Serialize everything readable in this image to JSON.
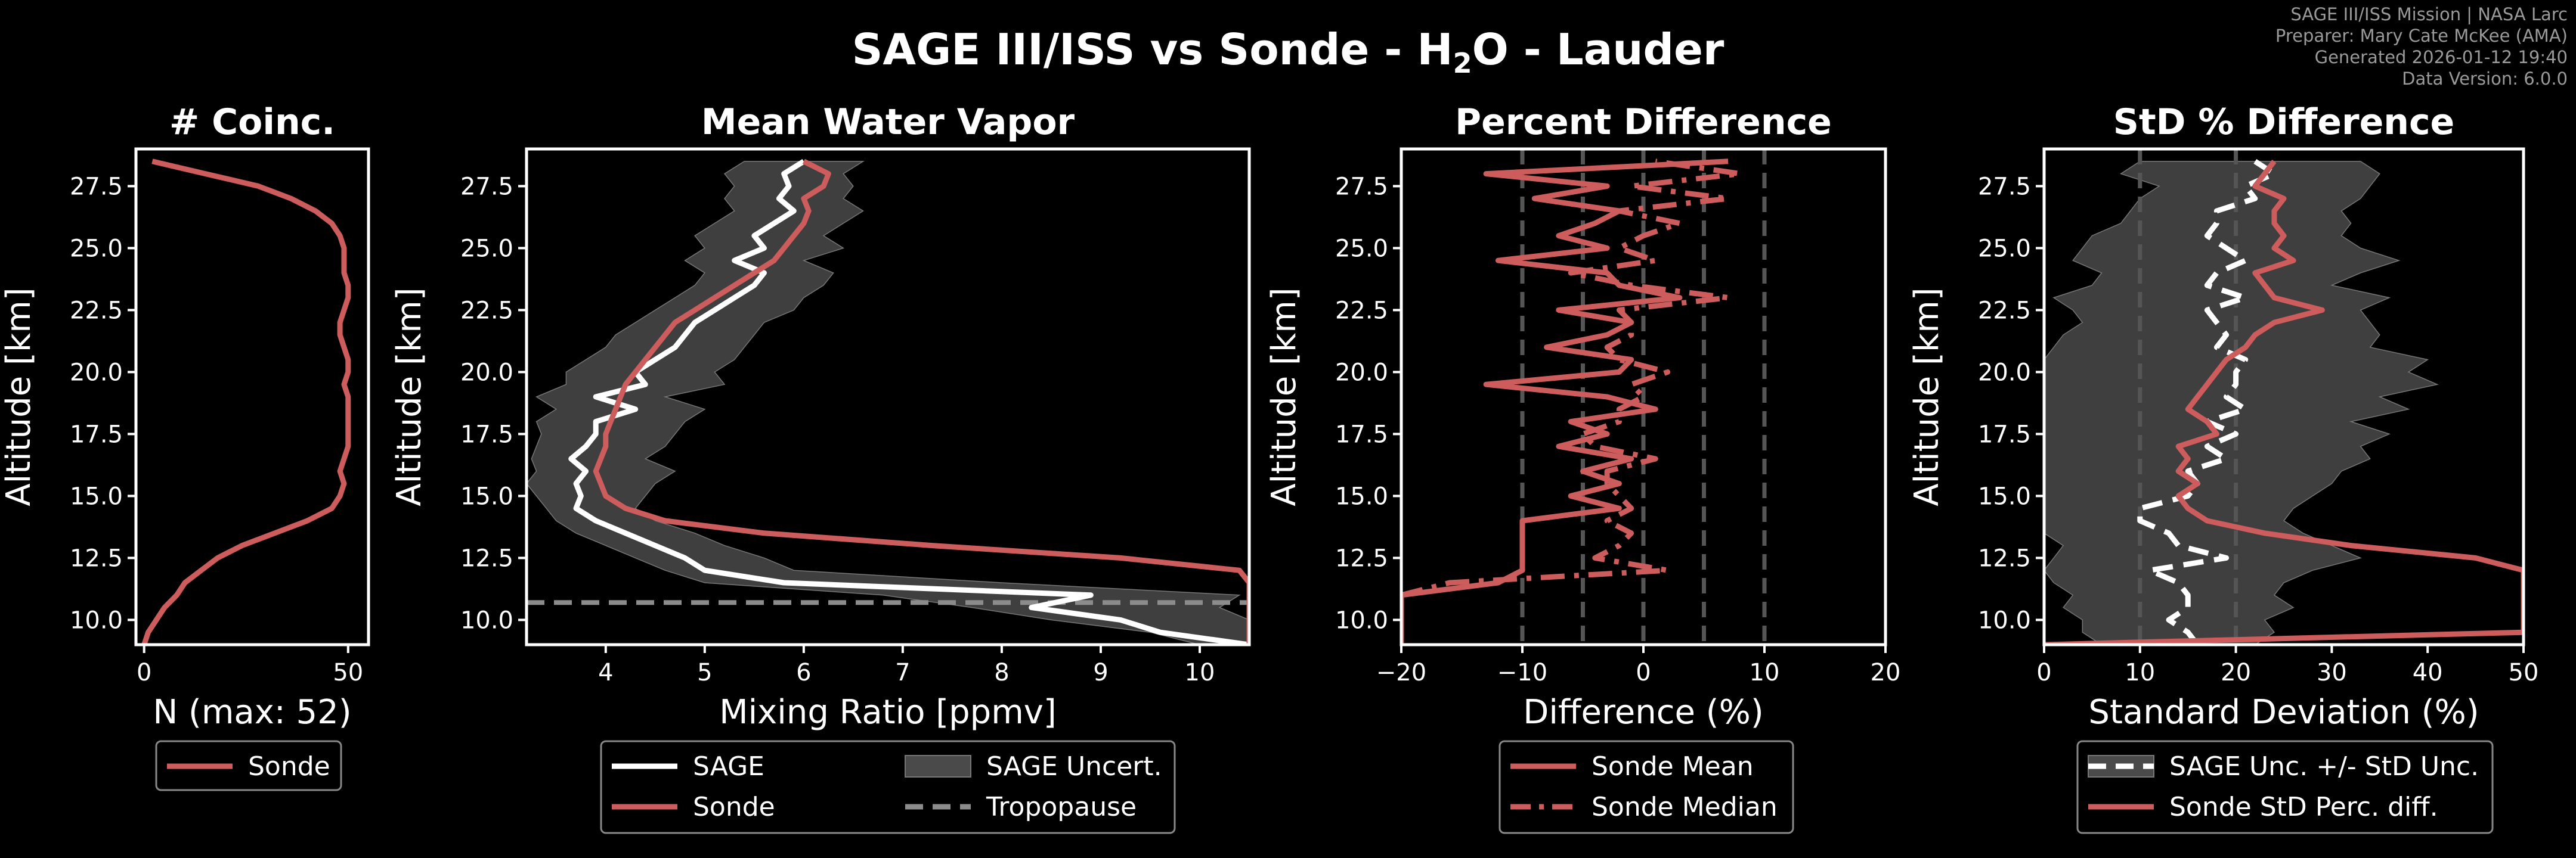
{
  "figure": {
    "title_prefix": "SAGE III/ISS vs Sonde - H",
    "title_sub": "2",
    "title_suffix": "O - Lauder",
    "meta_lines": [
      "SAGE III/ISS Mission | NASA Larc",
      "Preparer: Mary Cate McKee (AMA)",
      "Generated 2026-01-12 19:40",
      "Data Version: 6.0.0"
    ]
  },
  "colors": {
    "sonde": "#cd5c5c",
    "sage": "#ffffff",
    "band": "#4a4a4a",
    "bandEdge": "#777777",
    "tropo": "#8c8c8c",
    "ref": "#555555"
  },
  "altitude": [
    9.0,
    9.5,
    10.0,
    10.5,
    11.0,
    11.5,
    12.0,
    12.5,
    13.0,
    13.5,
    14.0,
    14.5,
    15.0,
    15.5,
    16.0,
    16.5,
    17.0,
    17.5,
    18.0,
    18.5,
    19.0,
    19.5,
    20.0,
    20.5,
    21.0,
    21.5,
    22.0,
    22.5,
    23.0,
    23.5,
    24.0,
    24.5,
    25.0,
    25.5,
    26.0,
    26.5,
    27.0,
    27.5,
    28.0,
    28.5
  ],
  "chart_data": [
    {
      "type": "line",
      "title": "# Coinc.",
      "xlabel": "N (max: 52)",
      "ylabel": "Altitude [km]",
      "xlim": [
        -2,
        55
      ],
      "ylim": [
        9,
        29
      ],
      "xticks": [
        0,
        50
      ],
      "xtick_labels": [
        "0",
        "50"
      ],
      "yticks": [
        10.0,
        12.5,
        15.0,
        17.5,
        20.0,
        22.5,
        25.0,
        27.5
      ],
      "ytick_labels": [
        "10.0",
        "12.5",
        "15.0",
        "17.5",
        "20.0",
        "22.5",
        "25.0",
        "27.5"
      ],
      "series": [
        {
          "name": "Sonde",
          "key": "sonde",
          "x": [
            0,
            1,
            3,
            5,
            8,
            10,
            14,
            18,
            24,
            32,
            40,
            46,
            48,
            49,
            48,
            49,
            50,
            50,
            50,
            50,
            50,
            49,
            50,
            50,
            49,
            48,
            48,
            49,
            50,
            50,
            49,
            49,
            49,
            48,
            46,
            42,
            36,
            28,
            15,
            2
          ]
        }
      ],
      "legend": [
        {
          "label": "Sonde",
          "key": "sonde",
          "style": "line"
        }
      ]
    },
    {
      "type": "line",
      "title": "Mean Water Vapor",
      "xlabel": "Mixing Ratio [ppmv]",
      "ylabel": "Altitude [km]",
      "xlim": [
        3.2,
        10.5
      ],
      "ylim": [
        9,
        29
      ],
      "xticks": [
        4,
        5,
        6,
        7,
        8,
        9,
        10
      ],
      "xtick_labels": [
        "4",
        "5",
        "6",
        "7",
        "8",
        "9",
        "10"
      ],
      "yticks": [
        10.0,
        12.5,
        15.0,
        17.5,
        20.0,
        22.5,
        25.0,
        27.5
      ],
      "ytick_labels": [
        "10.0",
        "12.5",
        "15.0",
        "17.5",
        "20.0",
        "22.5",
        "25.0",
        "27.5"
      ],
      "series": [
        {
          "name": "SAGE",
          "key": "sage",
          "x": [
            10.5,
            9.6,
            9.2,
            8.3,
            8.9,
            5.8,
            5.0,
            4.8,
            4.5,
            4.2,
            3.9,
            3.7,
            3.75,
            3.7,
            3.8,
            3.65,
            3.8,
            3.9,
            3.9,
            4.3,
            3.9,
            4.4,
            4.3,
            4.5,
            4.7,
            4.8,
            4.9,
            5.1,
            5.3,
            5.5,
            5.6,
            5.3,
            5.6,
            5.5,
            5.7,
            5.9,
            5.75,
            5.85,
            5.8,
            6.0
          ]
        },
        {
          "name": "Sonde",
          "key": "sonde",
          "x": [
            10.5,
            10.5,
            10.5,
            10.5,
            10.5,
            10.5,
            10.4,
            9.2,
            7.3,
            5.6,
            4.6,
            4.2,
            4.0,
            3.95,
            3.9,
            3.95,
            4.0,
            4.0,
            4.05,
            4.1,
            4.15,
            4.2,
            4.3,
            4.4,
            4.5,
            4.6,
            4.7,
            4.9,
            5.1,
            5.3,
            5.5,
            5.7,
            5.8,
            5.9,
            6.0,
            6.05,
            6.0,
            6.2,
            6.25,
            6.0
          ]
        }
      ],
      "band": {
        "name": "SAGE Uncert.",
        "low": [
          10.0,
          9.5,
          8.5,
          7.7,
          6.8,
          5.0,
          4.6,
          4.3,
          4.0,
          3.7,
          3.5,
          3.4,
          3.3,
          3.2,
          3.3,
          3.25,
          3.3,
          3.35,
          3.3,
          3.5,
          3.3,
          3.6,
          3.6,
          3.8,
          4.0,
          4.1,
          4.3,
          4.5,
          4.7,
          4.9,
          5.0,
          4.8,
          5.0,
          4.9,
          5.1,
          5.3,
          5.2,
          5.3,
          5.2,
          5.4
        ],
        "high": [
          10.5,
          10.5,
          10.5,
          10.2,
          10.4,
          8.0,
          5.9,
          5.6,
          5.2,
          4.9,
          4.5,
          4.3,
          4.4,
          4.5,
          4.7,
          4.4,
          4.6,
          4.7,
          4.8,
          5.0,
          4.6,
          5.2,
          5.1,
          5.3,
          5.4,
          5.5,
          5.6,
          5.9,
          6.0,
          6.2,
          6.3,
          6.0,
          6.4,
          6.2,
          6.4,
          6.6,
          6.4,
          6.5,
          6.4,
          6.6
        ]
      },
      "tropopause": {
        "name": "Tropopause",
        "altitude": 10.7
      },
      "legend": [
        {
          "label": "SAGE",
          "key": "sage",
          "style": "line"
        },
        {
          "label": "Sonde",
          "key": "sonde",
          "style": "line"
        },
        {
          "label": "SAGE Uncert.",
          "key": "band",
          "style": "patch"
        },
        {
          "label": "Tropopause",
          "key": "tropo",
          "style": "dash"
        }
      ]
    },
    {
      "type": "line",
      "title": "Percent Difference",
      "xlabel": "Difference (%)",
      "ylabel": "Altitude [km]",
      "xlim": [
        -20,
        20
      ],
      "ylim": [
        9,
        29
      ],
      "xticks": [
        -20,
        -10,
        0,
        10,
        20
      ],
      "xtick_labels": [
        "−20",
        "−10",
        "0",
        "10",
        "20"
      ],
      "yticks": [
        10.0,
        12.5,
        15.0,
        17.5,
        20.0,
        22.5,
        25.0,
        27.5
      ],
      "ytick_labels": [
        "10.0",
        "12.5",
        "15.0",
        "17.5",
        "20.0",
        "22.5",
        "25.0",
        "27.5"
      ],
      "ref_lines": [
        -10,
        -5,
        0,
        5,
        10
      ],
      "series": [
        {
          "name": "Sonde Mean",
          "key": "sonde",
          "style": "solid",
          "x": [
            -20,
            -20,
            -20,
            -20,
            -20,
            -12,
            -10,
            -10,
            -10,
            -10,
            -10,
            -2,
            -6,
            -2,
            -5,
            -1,
            -7,
            -3,
            -6,
            1,
            -3,
            -13,
            -2,
            -1,
            -8,
            -3,
            -1,
            -7,
            3,
            -2,
            -3,
            -12,
            -3,
            -7,
            -4,
            -2,
            -9,
            -3,
            -13,
            7
          ]
        },
        {
          "name": "Sonde Median",
          "key": "sonde",
          "style": "dashdot",
          "x": [
            -20,
            -20,
            -20,
            -20,
            -20,
            -16,
            2,
            -4,
            -2,
            -1,
            -3,
            -1,
            -2,
            -3,
            -3,
            1,
            -4,
            -5,
            -2,
            -2,
            0,
            -1,
            2,
            -2,
            -3,
            -1,
            -1,
            -2,
            7,
            -1,
            -6,
            1,
            -2,
            0,
            3,
            -2,
            7,
            -1,
            8,
            1
          ]
        }
      ],
      "legend": [
        {
          "label": "Sonde Mean",
          "key": "sonde",
          "style": "line"
        },
        {
          "label": "Sonde Median",
          "key": "sonde",
          "style": "dashdot"
        }
      ]
    },
    {
      "type": "line",
      "title": "StD % Difference",
      "xlabel": "Standard Deviation (%)",
      "ylabel": "Altitude [km]",
      "xlim": [
        0,
        50
      ],
      "ylim": [
        9,
        29
      ],
      "xticks": [
        0,
        10,
        20,
        30,
        40,
        50
      ],
      "xtick_labels": [
        "0",
        "10",
        "20",
        "30",
        "40",
        "50"
      ],
      "yticks": [
        10.0,
        12.5,
        15.0,
        17.5,
        20.0,
        22.5,
        25.0,
        27.5
      ],
      "ytick_labels": [
        "10.0",
        "12.5",
        "15.0",
        "17.5",
        "20.0",
        "22.5",
        "25.0",
        "27.5"
      ],
      "ref_lines": [
        10,
        20
      ],
      "series": [
        {
          "name": "SAGE Unc. +/- StD Unc.",
          "key": "sage",
          "style": "dashed",
          "x": [
            16,
            15,
            13,
            15,
            15,
            14,
            11,
            19,
            14,
            13,
            10,
            10,
            15,
            16,
            15,
            19,
            17,
            20,
            17,
            21,
            19,
            20,
            20,
            21,
            18,
            19,
            18,
            17,
            21,
            17,
            18,
            21,
            19,
            17,
            18,
            18,
            22,
            21,
            24,
            22
          ]
        },
        {
          "name": "Sonde StD Perc. diff.",
          "key": "sonde",
          "style": "solid",
          "x": [
            0,
            50,
            50,
            50,
            50,
            50,
            50,
            45,
            32,
            23,
            17,
            15,
            14,
            16,
            14,
            15,
            14,
            18,
            17,
            15,
            16,
            17,
            18,
            19,
            21,
            22,
            24,
            29,
            24,
            23,
            22,
            26,
            24,
            25,
            24,
            24,
            25,
            22,
            23,
            24
          ]
        }
      ],
      "band": {
        "name": "SAGE Unc. +/- StD Unc.",
        "low": [
          6,
          4,
          4,
          2,
          3,
          1,
          0,
          1,
          2,
          0,
          0,
          0,
          0,
          0,
          0,
          0,
          0,
          0,
          0,
          0,
          0,
          0,
          0,
          0,
          1,
          2,
          4,
          3,
          1,
          5,
          6,
          3,
          4,
          5,
          8,
          9,
          10,
          12,
          8,
          10
        ],
        "high": [
          22,
          24,
          23,
          26,
          24,
          25,
          28,
          33,
          30,
          27,
          25,
          26,
          28,
          30,
          31,
          34,
          33,
          36,
          32,
          38,
          35,
          41,
          38,
          40,
          34,
          35,
          34,
          33,
          36,
          30,
          33,
          37,
          33,
          31,
          32,
          31,
          33,
          34,
          35,
          33
        ]
      },
      "legend": [
        {
          "label": "SAGE Unc. +/- StD Unc.",
          "key": "sage",
          "style": "dash-patch"
        },
        {
          "label": "Sonde StD Perc. diff.",
          "key": "sonde",
          "style": "line"
        }
      ]
    }
  ]
}
